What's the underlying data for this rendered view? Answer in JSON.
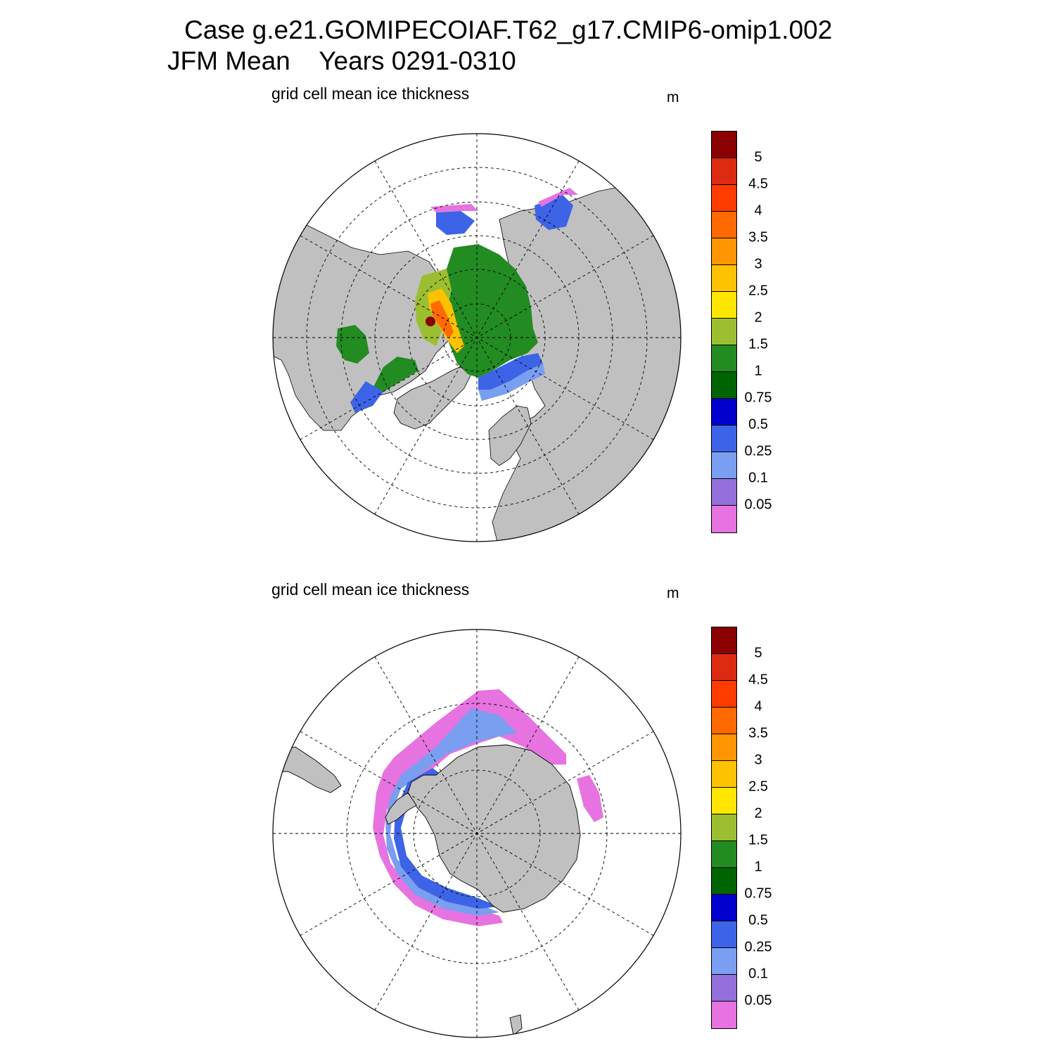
{
  "header": {
    "line1": "Case g.e21.GOMIPECOIAF.T62_g17.CMIP6-omip1.002",
    "line2": "JFM Mean    Years 0291-0310"
  },
  "panels": [
    {
      "id": "north",
      "title": "grid cell mean ice thickness",
      "unit": "m"
    },
    {
      "id": "south",
      "title": "grid cell mean ice thickness",
      "unit": "m"
    }
  ],
  "colorbar": {
    "labels": [
      "5",
      "4.5",
      "4",
      "3.5",
      "3",
      "2.5",
      "2",
      "1.5",
      "1",
      "0.75",
      "0.5",
      "0.25",
      "0.1",
      "0.05"
    ],
    "colors": [
      "#8b0000",
      "#dd2a12",
      "#ff3b00",
      "#ff6a00",
      "#ff9500",
      "#ffc200",
      "#ffe600",
      "#9bbf30",
      "#228b22",
      "#006400",
      "#0000cd",
      "#3d64e6",
      "#7a9ef0",
      "#9370db",
      "#e673e0"
    ]
  },
  "map_style": {
    "land": "#c0c0c0",
    "ocean": "#ffffff",
    "grid": "#000000"
  }
}
